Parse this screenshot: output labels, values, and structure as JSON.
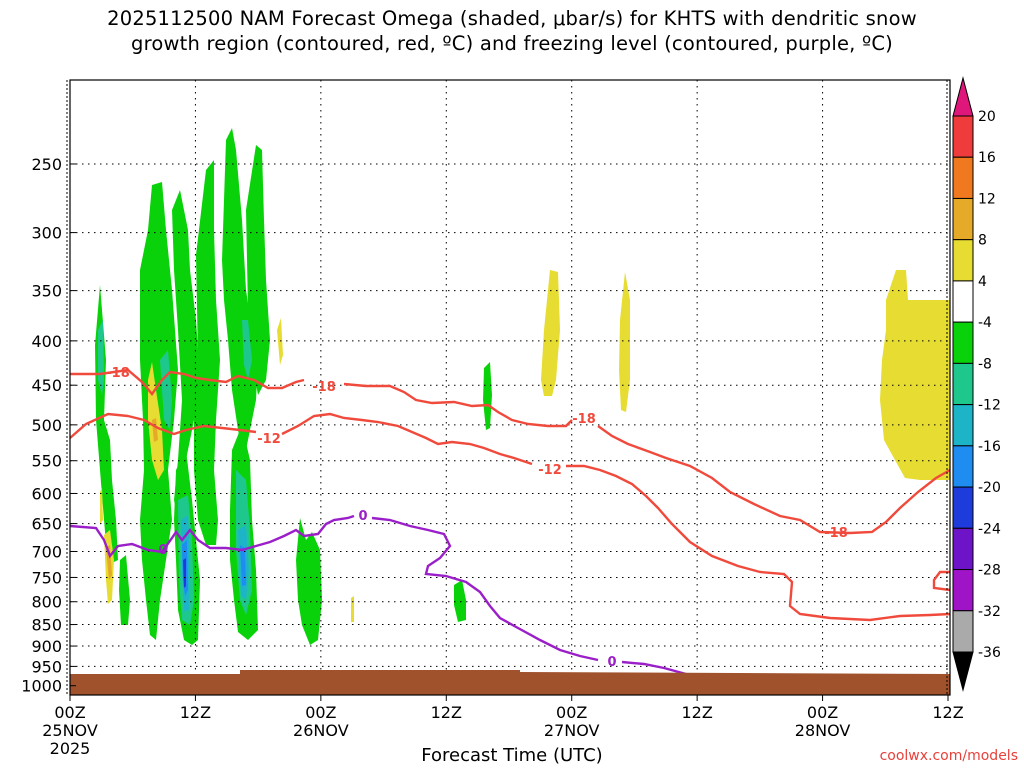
{
  "title": {
    "line1": "2025112500 NAM Forecast Omega (shaded, μbar/s) for KHTS with dendritic snow",
    "line2": "growth region (contoured, red, ºC) and freezing level (contoured, purple, ºC)"
  },
  "credit": "coolwx.com/models",
  "chart_data": {
    "type": "heatmap",
    "title": "2025112500 NAM Forecast Omega (shaded, μbar/s) for KHTS with dendritic snow growth region (contoured, red, ºC) and freezing level (contoured, purple, ºC)",
    "xlabel": "Forecast Time (UTC)",
    "ylabel": "",
    "x_ticks": [
      {
        "hour": 0,
        "label": "00Z",
        "date": "25NOV",
        "year": "2025"
      },
      {
        "hour": 12,
        "label": "12Z",
        "date": "",
        "year": ""
      },
      {
        "hour": 24,
        "label": "00Z",
        "date": "26NOV",
        "year": ""
      },
      {
        "hour": 36,
        "label": "12Z",
        "date": "",
        "year": ""
      },
      {
        "hour": 48,
        "label": "00Z",
        "date": "27NOV",
        "year": ""
      },
      {
        "hour": 60,
        "label": "12Z",
        "date": "",
        "year": ""
      },
      {
        "hour": 72,
        "label": "00Z",
        "date": "28NOV",
        "year": ""
      },
      {
        "hour": 84,
        "label": "12Z",
        "date": "",
        "year": ""
      }
    ],
    "xlim": [
      0,
      84
    ],
    "y_ticks": [
      250,
      300,
      350,
      400,
      450,
      500,
      550,
      600,
      650,
      700,
      750,
      800,
      850,
      900,
      950,
      1000
    ],
    "ylim": [
      200,
      1025
    ],
    "y_scale": "log",
    "grid": true,
    "colorbar": {
      "labels": [
        "20",
        "16",
        "12",
        "8",
        "4",
        "-4",
        "-8",
        "-12",
        "-16",
        "-20",
        "-24",
        "-28",
        "-32",
        "-36"
      ],
      "bins": [
        {
          "lo": 20,
          "hi": null,
          "color": "#e0177a"
        },
        {
          "lo": 16,
          "hi": 20,
          "color": "#ef3b3b"
        },
        {
          "lo": 12,
          "hi": 16,
          "color": "#f0781e"
        },
        {
          "lo": 8,
          "hi": 12,
          "color": "#e4aa28"
        },
        {
          "lo": 4,
          "hi": 8,
          "color": "#e6dc32"
        },
        {
          "lo": -4,
          "hi": 4,
          "color": "#ffffff"
        },
        {
          "lo": -8,
          "hi": -4,
          "color": "#0ad20a"
        },
        {
          "lo": -12,
          "hi": -8,
          "color": "#1ec88c"
        },
        {
          "lo": -16,
          "hi": -12,
          "color": "#1eb4c8"
        },
        {
          "lo": -20,
          "hi": -16,
          "color": "#1e8cf0"
        },
        {
          "lo": -24,
          "hi": -20,
          "color": "#1e3cdc"
        },
        {
          "lo": -28,
          "hi": -24,
          "color": "#6e14c8"
        },
        {
          "lo": -32,
          "hi": -28,
          "color": "#a014c8"
        },
        {
          "lo": -36,
          "hi": -32,
          "color": "#aaaaaa"
        },
        {
          "lo": null,
          "hi": -36,
          "color": "#000000"
        }
      ]
    },
    "contours": [
      {
        "label": "-18",
        "color": "#f04a3c",
        "kind": "temperature"
      },
      {
        "label": "-12",
        "color": "#f04a3c",
        "kind": "temperature"
      },
      {
        "label": "0",
        "color": "#9b1fc8",
        "kind": "freezing level"
      }
    ],
    "terrain_color": "#a0522d"
  },
  "colors": {
    "contour_red": "#f04a3c",
    "contour_purple": "#9b1fc8",
    "credit": "#e8403b"
  }
}
